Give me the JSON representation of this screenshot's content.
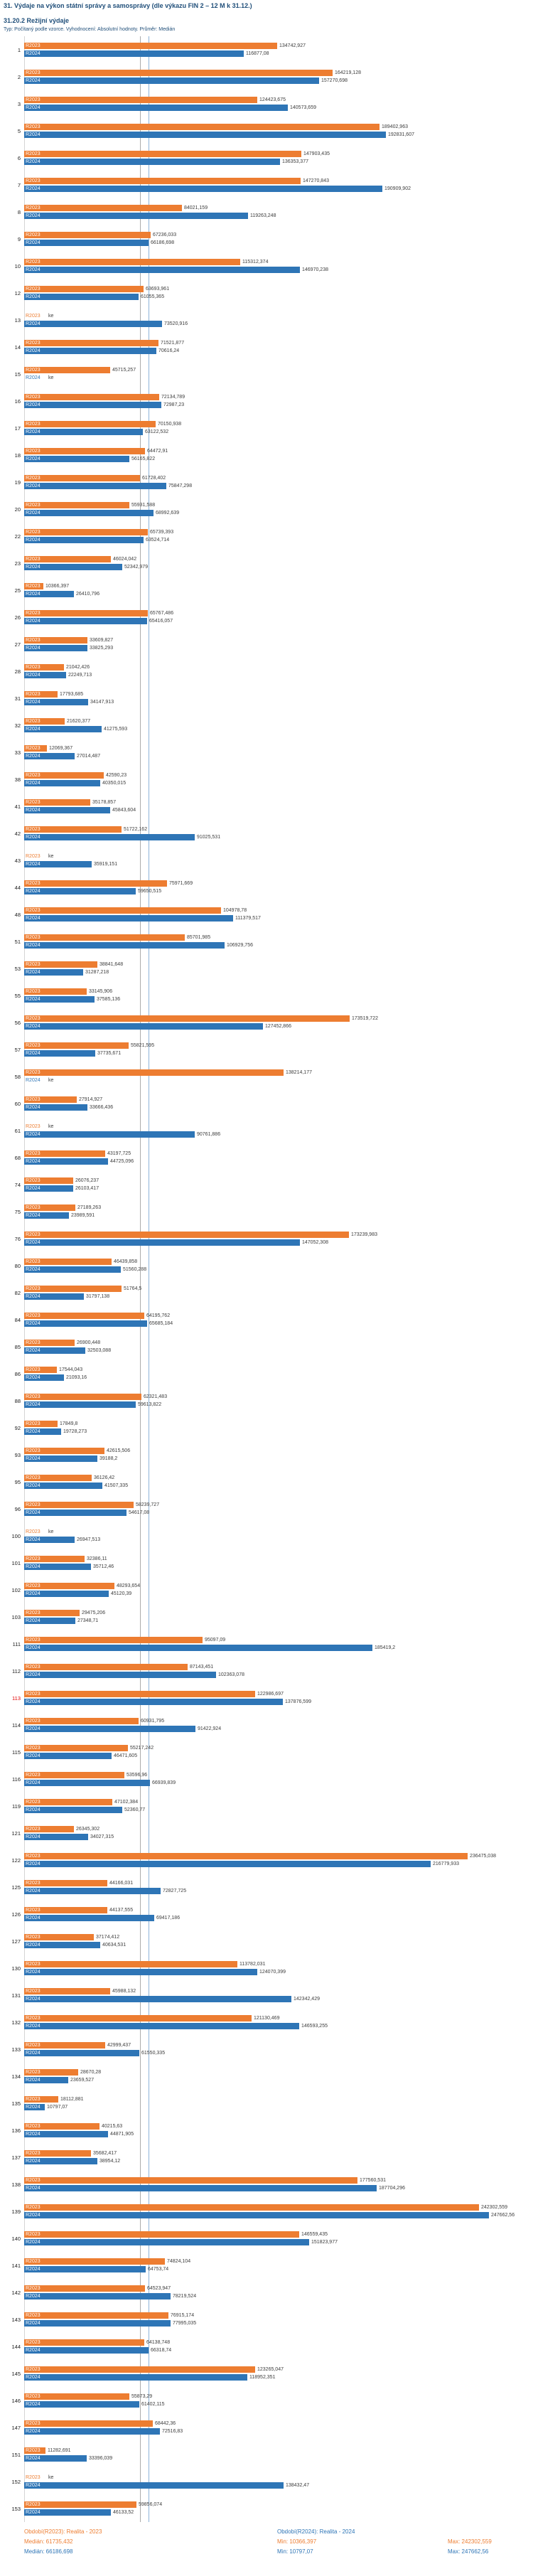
{
  "chart_data": {
    "type": "bar",
    "orientation": "horizontal",
    "title": "31. Výdaje na výkon státní správy a samosprávy (dle výkazu FIN 2 – 12 M k 31.12.)",
    "subtitle": "31.20.2 Režijní výdaje",
    "meta": "Typ: Počítaný podle vzorce. Vyhodnocení: Absolutní hodnoty. Průměr: Medián",
    "x_max": 250000,
    "missing_value_label": "ke",
    "series": [
      {
        "name": "R2023",
        "color": "#ED7D31",
        "median": 61735.432
      },
      {
        "name": "R2024",
        "color": "#2E75B6",
        "median": 66186.698
      }
    ],
    "rows": [
      {
        "id": "1",
        "r2023": "134742,927",
        "r2024": "116877,08"
      },
      {
        "id": "2",
        "r2023": "164219,128",
        "r2024": "157270,698"
      },
      {
        "id": "3",
        "r2023": "124423,675",
        "r2024": "140573,659"
      },
      {
        "id": "5",
        "r2023": "189402,963",
        "r2024": "192831,607"
      },
      {
        "id": "6",
        "r2023": "147903,435",
        "r2024": "136353,377"
      },
      {
        "id": "7",
        "r2023": "147270,843",
        "r2024": "190909,902"
      },
      {
        "id": "8",
        "r2023": "84021,159",
        "r2024": "119263,248"
      },
      {
        "id": "9",
        "r2023": "67236,033",
        "r2024": "66186,698"
      },
      {
        "id": "10",
        "r2023": "115312,374",
        "r2024": "146970,238"
      },
      {
        "id": "12",
        "r2023": "63693,961",
        "r2024": "61055,365"
      },
      {
        "id": "13",
        "r2023": "ke",
        "r2024": "73520,916"
      },
      {
        "id": "14",
        "r2023": "71521,877",
        "r2024": "70616,24"
      },
      {
        "id": "15",
        "r2023": "45715,257",
        "r2024": "ke"
      },
      {
        "id": "16",
        "r2023": "72134,789",
        "r2024": "72987,23"
      },
      {
        "id": "17",
        "r2023": "70150,938",
        "r2024": "63122,532"
      },
      {
        "id": "18",
        "r2023": "64472,91",
        "r2024": "56165,822"
      },
      {
        "id": "19",
        "r2023": "61728,402",
        "r2024": "75847,298"
      },
      {
        "id": "20",
        "r2023": "55931,588",
        "r2024": "68992,639"
      },
      {
        "id": "22",
        "r2023": "65739,393",
        "r2024": "63524,714"
      },
      {
        "id": "23",
        "r2023": "46024,042",
        "r2024": "52342,979"
      },
      {
        "id": "25",
        "r2023": "10366,397",
        "r2024": "26410,796"
      },
      {
        "id": "26",
        "r2023": "65767,486",
        "r2024": "65416,057"
      },
      {
        "id": "27",
        "r2023": "33609,827",
        "r2024": "33825,293"
      },
      {
        "id": "28",
        "r2023": "21042,426",
        "r2024": "22249,713"
      },
      {
        "id": "31",
        "r2023": "17793,685",
        "r2024": "34147,913"
      },
      {
        "id": "32",
        "r2023": "21620,377",
        "r2024": "41275,593"
      },
      {
        "id": "33",
        "r2023": "12069,367",
        "r2024": "27014,487"
      },
      {
        "id": "38",
        "r2023": "42590,23",
        "r2024": "40350,015"
      },
      {
        "id": "41",
        "r2023": "35178,857",
        "r2024": "45843,604"
      },
      {
        "id": "42",
        "r2023": "51722,162",
        "r2024": "91025,531"
      },
      {
        "id": "43",
        "r2023": "ke",
        "r2024": "35919,151"
      },
      {
        "id": "44",
        "r2023": "75971,669",
        "r2024": "59650,515"
      },
      {
        "id": "48",
        "r2023": "104978,78",
        "r2024": "111379,517"
      },
      {
        "id": "51",
        "r2023": "85701,985",
        "r2024": "106929,756"
      },
      {
        "id": "53",
        "r2023": "38841,648",
        "r2024": "31287,218"
      },
      {
        "id": "55",
        "r2023": "33145,906",
        "r2024": "37585,136"
      },
      {
        "id": "56",
        "r2023": "173519,722",
        "r2024": "127452,866"
      },
      {
        "id": "57",
        "r2023": "55821,595",
        "r2024": "37735,671"
      },
      {
        "id": "58",
        "r2023": "138214,177",
        "r2024": "ke"
      },
      {
        "id": "60",
        "r2023": "27914,927",
        "r2024": "33666,436"
      },
      {
        "id": "61",
        "r2023": "ke",
        "r2024": "90761,886"
      },
      {
        "id": "68",
        "r2023": "43197,725",
        "r2024": "44725,096"
      },
      {
        "id": "74",
        "r2023": "26076,237",
        "r2024": "26103,417"
      },
      {
        "id": "75",
        "r2023": "27189,263",
        "r2024": "23989,591"
      },
      {
        "id": "76",
        "r2023": "173239,983",
        "r2024": "147052,308"
      },
      {
        "id": "80",
        "r2023": "46439,858",
        "r2024": "51560,288"
      },
      {
        "id": "82",
        "r2023": "51764,5",
        "r2024": "31797,138"
      },
      {
        "id": "84",
        "r2023": "64195,762",
        "r2024": "65685,184"
      },
      {
        "id": "85",
        "r2023": "26900,448",
        "r2024": "32503,088"
      },
      {
        "id": "86",
        "r2023": "17544,043",
        "r2024": "21093,16"
      },
      {
        "id": "88",
        "r2023": "62321,483",
        "r2024": "59613,822"
      },
      {
        "id": "92",
        "r2023": "17849,8",
        "r2024": "19728,273"
      },
      {
        "id": "93",
        "r2023": "42615,506",
        "r2024": "39188,2"
      },
      {
        "id": "95",
        "r2023": "36126,42",
        "r2024": "41507,335"
      },
      {
        "id": "96",
        "r2023": "58239,727",
        "r2024": "54617,08"
      },
      {
        "id": "100",
        "r2023": "ke",
        "r2024": "26947,513"
      },
      {
        "id": "101",
        "r2023": "32386,11",
        "r2024": "35712,46"
      },
      {
        "id": "102",
        "r2023": "48293,654",
        "r2024": "45120,39"
      },
      {
        "id": "103",
        "r2023": "29475,206",
        "r2024": "27348,71"
      },
      {
        "id": "111",
        "r2023": "95097,09",
        "r2024": "185419,2"
      },
      {
        "id": "112",
        "r2023": "87143,451",
        "r2024": "102363,078"
      },
      {
        "id": "113",
        "r2023": "122986,697",
        "r2024": "137876,599",
        "highlight": true
      },
      {
        "id": "114",
        "r2023": "60931,795",
        "r2024": "91422,924"
      },
      {
        "id": "115",
        "r2023": "55217,242",
        "r2024": "46471,605"
      },
      {
        "id": "116",
        "r2023": "53596,96",
        "r2024": "66939,839"
      },
      {
        "id": "119",
        "r2023": "47102,384",
        "r2024": "52360,77"
      },
      {
        "id": "121",
        "r2023": "26345,302",
        "r2024": "34027,315"
      },
      {
        "id": "122",
        "r2023": "236475,038",
        "r2024": "216779,933"
      },
      {
        "id": "125",
        "r2023": "44166,031",
        "r2024": "72827,725"
      },
      {
        "id": "126",
        "r2023": "44137,555",
        "r2024": "69417,186"
      },
      {
        "id": "127",
        "r2023": "37174,412",
        "r2024": "40634,531"
      },
      {
        "id": "130",
        "r2023": "113782,031",
        "r2024": "124070,399"
      },
      {
        "id": "131",
        "r2023": "45988,132",
        "r2024": "142342,429"
      },
      {
        "id": "132",
        "r2023": "121130,469",
        "r2024": "146593,255"
      },
      {
        "id": "133",
        "r2023": "42999,437",
        "r2024": "61550,335"
      },
      {
        "id": "134",
        "r2023": "28670,28",
        "r2024": "23659,527"
      },
      {
        "id": "135",
        "r2023": "18112,881",
        "r2024": "10797,07"
      },
      {
        "id": "136",
        "r2023": "40215,63",
        "r2024": "44871,905"
      },
      {
        "id": "137",
        "r2023": "35682,417",
        "r2024": "38954,12"
      },
      {
        "id": "138",
        "r2023": "177560,531",
        "r2024": "187704,296"
      },
      {
        "id": "139",
        "r2023": "242302,559",
        "r2024": "247662,56"
      },
      {
        "id": "140",
        "r2023": "146559,435",
        "r2024": "151823,977"
      },
      {
        "id": "141",
        "r2023": "74824,104",
        "r2024": "64753,74"
      },
      {
        "id": "142",
        "r2023": "64523,947",
        "r2024": "78219,524"
      },
      {
        "id": "143",
        "r2023": "76915,174",
        "r2024": "77995,035"
      },
      {
        "id": "144",
        "r2023": "64138,748",
        "r2024": "66318,74"
      },
      {
        "id": "145",
        "r2023": "123265,047",
        "r2024": "118952,351"
      },
      {
        "id": "146",
        "r2023": "55873,29",
        "r2024": "61402,115"
      },
      {
        "id": "147",
        "r2023": "68442,36",
        "r2024": "72516,83"
      },
      {
        "id": "151",
        "r2023": "11282,691",
        "r2024": "33396,039"
      },
      {
        "id": "152",
        "r2023": "ke",
        "r2024": "138432,47"
      },
      {
        "id": "153",
        "r2023": "59856,074",
        "r2024": "46133,52"
      }
    ]
  },
  "footer": {
    "legend_r2023": "Období(R2023): Realita - 2023",
    "legend_r2024": "Období(R2024): Realita - 2024",
    "stats_r2023": {
      "median": "Medián: 61735,432",
      "min": "Min: 10366,397",
      "max": "Max: 242302,559"
    },
    "stats_r2024": {
      "median": "Medián: 66186,698",
      "min": "Min: 10797,07",
      "max": "Max: 247662,56"
    }
  }
}
